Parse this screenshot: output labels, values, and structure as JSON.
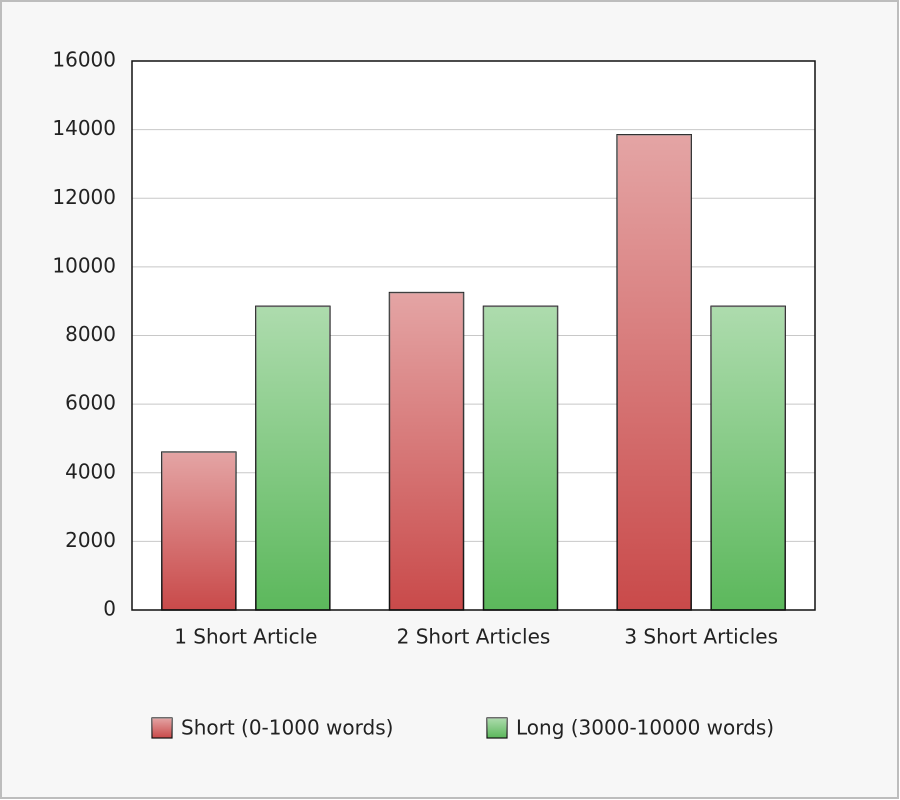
{
  "chart_data": {
    "type": "bar",
    "categories": [
      "1 Short Article",
      "2 Short Articles",
      "3 Short Articles"
    ],
    "series": [
      {
        "name": "Short (0-1000 words)",
        "color": "#c94a4a",
        "values": [
          4600,
          9250,
          13850
        ]
      },
      {
        "name": "Long (3000-10000 words)",
        "color": "#5cb85c",
        "values": [
          8850,
          8850,
          8850
        ]
      }
    ],
    "ylim": [
      0,
      16000
    ],
    "yticks": [
      0,
      2000,
      4000,
      6000,
      8000,
      10000,
      12000,
      14000,
      16000
    ],
    "grid": true,
    "legend": "bottom"
  }
}
